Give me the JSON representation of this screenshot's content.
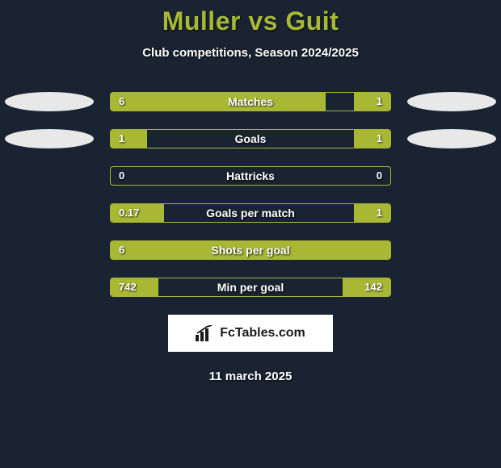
{
  "title": "Muller vs Guit",
  "subtitle": "Club competitions, Season 2024/2025",
  "footer_brand": "FcTables.com",
  "footer_date": "11 march 2025",
  "colors": {
    "background": "#1a2332",
    "accent": "#a8b835",
    "ellipse": "#e8e8e8",
    "text": "#ffffff",
    "badge_bg": "#ffffff",
    "badge_text": "#1a1a1a"
  },
  "rows": [
    {
      "label": "Matches",
      "left_val": "6",
      "right_val": "1",
      "left_fill_pct": 77,
      "right_fill_pct": 13,
      "show_left_ellipse": true,
      "show_right_ellipse": true
    },
    {
      "label": "Goals",
      "left_val": "1",
      "right_val": "1",
      "left_fill_pct": 13,
      "right_fill_pct": 13,
      "show_left_ellipse": true,
      "show_right_ellipse": true
    },
    {
      "label": "Hattricks",
      "left_val": "0",
      "right_val": "0",
      "left_fill_pct": 0,
      "right_fill_pct": 0,
      "show_left_ellipse": false,
      "show_right_ellipse": false
    },
    {
      "label": "Goals per match",
      "left_val": "0.17",
      "right_val": "1",
      "left_fill_pct": 19,
      "right_fill_pct": 13,
      "show_left_ellipse": false,
      "show_right_ellipse": false
    },
    {
      "label": "Shots per goal",
      "left_val": "6",
      "right_val": "",
      "left_fill_pct": 100,
      "right_fill_pct": 0,
      "show_left_ellipse": false,
      "show_right_ellipse": false
    },
    {
      "label": "Min per goal",
      "left_val": "742",
      "right_val": "142",
      "left_fill_pct": 17,
      "right_fill_pct": 17,
      "show_left_ellipse": false,
      "show_right_ellipse": false
    }
  ]
}
